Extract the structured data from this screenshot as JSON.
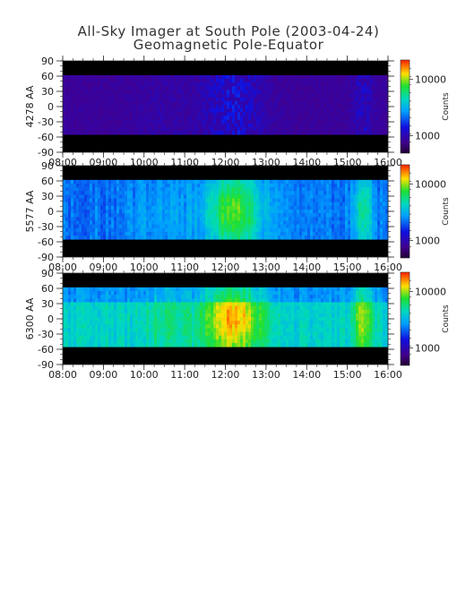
{
  "title_line1": "All-Sky Imager at South Pole (2003-04-24)",
  "title_line2": "Geomagnetic Pole-Equator",
  "chart_data": [
    {
      "type": "heatmap",
      "panel": "4278 AA",
      "ylabel": "4278 AA",
      "x_ticks": [
        "08:00",
        "09:00",
        "10:00",
        "11:00",
        "12:00",
        "13:00",
        "14:00",
        "15:00",
        "16:00"
      ],
      "y_ticks": [
        90,
        60,
        30,
        0,
        -30,
        -60,
        -90
      ],
      "ylim": [
        -90,
        90
      ],
      "data_lat_range": [
        -55,
        62
      ],
      "colorbar": {
        "label": "Counts",
        "ticks": [
          "10000",
          "1000"
        ],
        "scale": "log"
      },
      "description_level": "low"
    },
    {
      "type": "heatmap",
      "panel": "5577 AA",
      "ylabel": "5577 AA",
      "x_ticks": [
        "08:00",
        "09:00",
        "10:00",
        "11:00",
        "12:00",
        "13:00",
        "14:00",
        "15:00",
        "16:00"
      ],
      "y_ticks": [
        90,
        60,
        30,
        0,
        -30,
        -60,
        -90
      ],
      "ylim": [
        -90,
        90
      ],
      "data_lat_range": [
        -55,
        62
      ],
      "colorbar": {
        "label": "Counts",
        "ticks": [
          "10000",
          "1000"
        ],
        "scale": "log"
      },
      "description_level": "medium"
    },
    {
      "type": "heatmap",
      "panel": "6300 AA",
      "ylabel": "6300 AA",
      "x_ticks": [
        "08:00",
        "09:00",
        "10:00",
        "11:00",
        "12:00",
        "13:00",
        "14:00",
        "15:00",
        "16:00"
      ],
      "y_ticks": [
        90,
        60,
        30,
        0,
        -30,
        -60,
        -90
      ],
      "ylim": [
        -90,
        90
      ],
      "data_lat_range": [
        -55,
        62
      ],
      "colorbar": {
        "label": "Counts",
        "ticks": [
          "10000",
          "1000"
        ],
        "scale": "log"
      },
      "description_level": "high"
    }
  ]
}
